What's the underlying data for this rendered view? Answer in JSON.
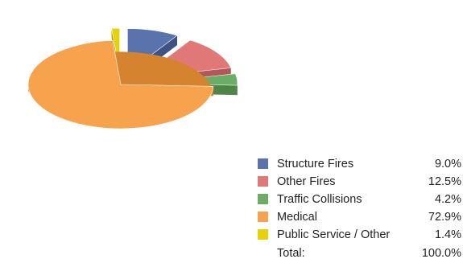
{
  "chart_data": {
    "type": "pie",
    "style": "3d-exploded",
    "categories": [
      "Structure Fires",
      "Other Fires",
      "Traffic Collisions",
      "Medical",
      "Public Service / Other"
    ],
    "values": [
      9.0,
      12.5,
      4.2,
      72.9,
      1.4
    ],
    "value_labels": [
      "9.0%",
      "12.5%",
      "4.2%",
      "72.9%",
      "1.4%"
    ],
    "colors": [
      "#5b73ac",
      "#e07878",
      "#6cad66",
      "#f7a24c",
      "#e6d20a"
    ],
    "side_colors": [
      "#3e5284",
      "#b25858",
      "#4f8549",
      "#d68330",
      "#b8a400"
    ],
    "legend_position": "bottom-right",
    "total_label": "Total:",
    "total_value": "100.0%"
  }
}
